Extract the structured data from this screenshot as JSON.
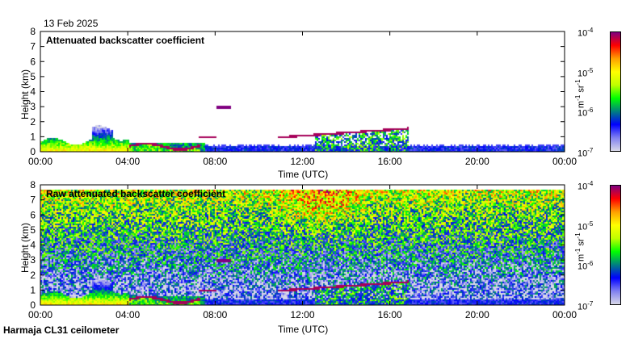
{
  "date": "13 Feb 2025",
  "footer": "Harmaja CL31 ceilometer",
  "colorbar": {
    "unit": "m-1 sr-1",
    "unit_parts": [
      "m",
      "-1",
      " sr",
      "-1"
    ],
    "ticks": [
      {
        "base": "10",
        "exp": "-4"
      },
      {
        "base": "10",
        "exp": "-5"
      },
      {
        "base": "10",
        "exp": "-6"
      },
      {
        "base": "10",
        "exp": "-7"
      }
    ],
    "range_log10": [
      -7,
      -4
    ],
    "colors": [
      "#d8d8e8",
      "#8080f0",
      "#0000ff",
      "#008080",
      "#00ff00",
      "#c0ff00",
      "#ffff00",
      "#ffa000",
      "#ff0000",
      "#800080"
    ]
  },
  "chart_data": [
    {
      "type": "heatmap",
      "title": "Attenuated backscatter coefficient",
      "xlabel": "Time (UTC)",
      "ylabel": "Height (km)",
      "xlim_hours": [
        0,
        24
      ],
      "ylim": [
        0,
        8
      ],
      "xticks": [
        "00:00",
        "04:00",
        "08:00",
        "12:00",
        "16:00",
        "20:00",
        "00:00"
      ],
      "yticks": [
        "0",
        "1",
        "2",
        "3",
        "4",
        "5",
        "6",
        "7",
        "8"
      ],
      "features": [
        {
          "name": "boundary layer aerosol",
          "t_hours": [
            0,
            4
          ],
          "height_km": [
            0,
            1.2
          ],
          "log10_value": -5.0
        },
        {
          "name": "low cloud layer",
          "t_hours": [
            4,
            7.3
          ],
          "height_km": 0.4,
          "log10_value": -4.1
        },
        {
          "name": "cloud layer",
          "t_hours": [
            7.2,
            8.0
          ],
          "height_km": 1.0,
          "log10_value": -4.1
        },
        {
          "name": "mid cloud",
          "t_hours": [
            8.0,
            8.7
          ],
          "height_km": 3.0,
          "log10_value": -4.0
        },
        {
          "name": "rising cloud base",
          "t_hours": [
            10.8,
            16.8
          ],
          "height_km": [
            1.0,
            1.6
          ],
          "log10_value": -4.1
        }
      ]
    },
    {
      "type": "heatmap",
      "title": "Raw attenuated backscatter coefficient",
      "xlabel": "Time (UTC)",
      "ylabel": "Height (km)",
      "xlim_hours": [
        0,
        24
      ],
      "ylim": [
        0,
        8
      ],
      "xticks": [
        "00:00",
        "04:00",
        "08:00",
        "12:00",
        "16:00",
        "20:00",
        "00:00"
      ],
      "yticks": [
        "0",
        "1",
        "2",
        "3",
        "4",
        "5",
        "6",
        "7",
        "8"
      ]
    }
  ]
}
